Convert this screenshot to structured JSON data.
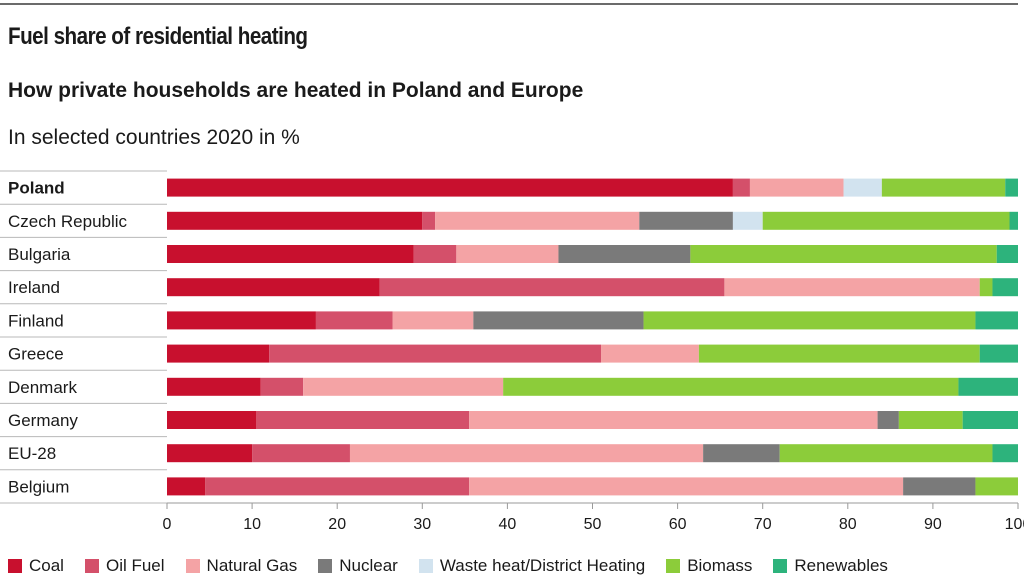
{
  "header": {
    "title": "Fuel share of residential heating",
    "subtitle": "How private households are heated in Poland and Europe",
    "unit": "In selected countries 2020 in %"
  },
  "colors": {
    "Coal": "#c8102e",
    "Oil Fuel": "#d4506a",
    "Natural Gas": "#f4a3a5",
    "Nuclear": "#7a7a7a",
    "Waste heat/District Heating": "#d2e3ef",
    "Biomass": "#8ccc3a",
    "Renewables": "#2db37c"
  },
  "chart_data": {
    "type": "bar",
    "orientation": "horizontal",
    "stacked": true,
    "title": "Fuel share of residential heating",
    "subtitle": "How private households are heated in Poland and Europe",
    "unit_label": "In selected countries 2020 in %",
    "categories": [
      "Poland",
      "Czech Republic",
      "Bulgaria",
      "Ireland",
      "Finland",
      "Greece",
      "Denmark",
      "Germany",
      "EU-28",
      "Belgium"
    ],
    "highlight_category": "Poland",
    "xlim": [
      0,
      100
    ],
    "xticks": [
      0,
      10,
      20,
      30,
      40,
      50,
      60,
      70,
      80,
      90,
      100
    ],
    "legend_position": "bottom",
    "series": [
      {
        "name": "Coal",
        "values": [
          66.5,
          30,
          29,
          25,
          17.5,
          12,
          11,
          10.5,
          10,
          4.5
        ]
      },
      {
        "name": "Oil Fuel",
        "values": [
          2,
          1.5,
          5,
          40.5,
          9,
          39,
          5,
          25,
          11.5,
          31
        ]
      },
      {
        "name": "Natural Gas",
        "values": [
          11,
          24,
          12,
          30,
          9.5,
          11.5,
          23.5,
          48,
          41.5,
          51
        ]
      },
      {
        "name": "Nuclear",
        "values": [
          0,
          11,
          15.5,
          0,
          20,
          0,
          0,
          2.5,
          9,
          8.5
        ]
      },
      {
        "name": "Waste heat/District Heating",
        "values": [
          4.5,
          3.5,
          0,
          0,
          0,
          0,
          0,
          0,
          0,
          0
        ]
      },
      {
        "name": "Biomass",
        "values": [
          14.5,
          29,
          36,
          1.5,
          39,
          33,
          53.5,
          7.5,
          25,
          5
        ]
      },
      {
        "name": "Renewables",
        "values": [
          1.5,
          1,
          2.5,
          3,
          5,
          4.5,
          7,
          6.5,
          3,
          0
        ]
      }
    ]
  }
}
